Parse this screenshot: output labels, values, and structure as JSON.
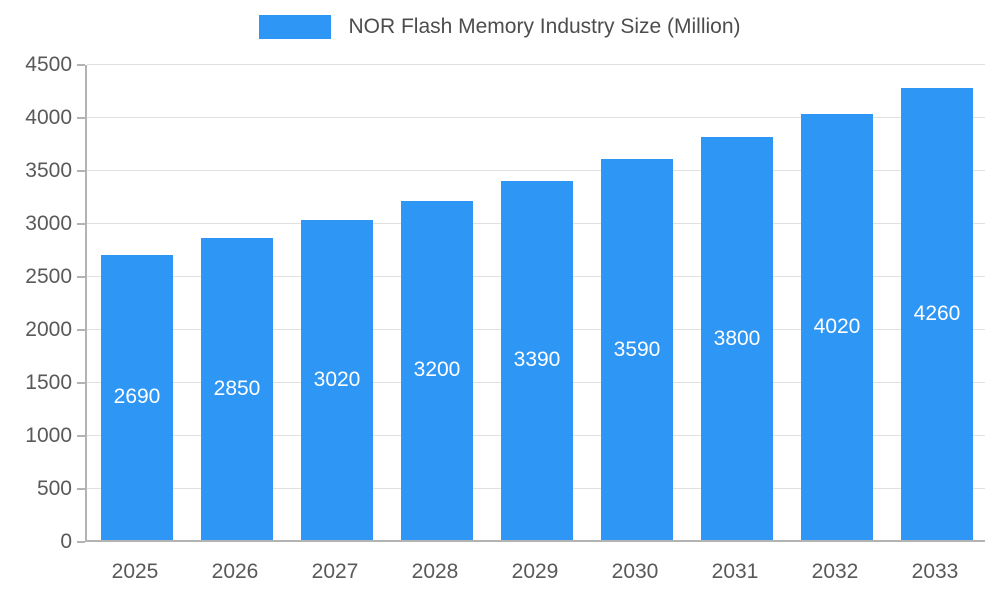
{
  "chart_data": {
    "type": "bar",
    "title": "NOR Flash Memory Industry Size (Million)",
    "categories": [
      "2025",
      "2026",
      "2027",
      "2028",
      "2029",
      "2030",
      "2031",
      "2032",
      "2033"
    ],
    "values": [
      2690,
      2850,
      3020,
      3200,
      3390,
      3590,
      3800,
      4020,
      4260
    ],
    "xlabel": "",
    "ylabel": "",
    "ylim": [
      0,
      4500
    ],
    "yticks": [
      0,
      500,
      1000,
      1500,
      2000,
      2500,
      3000,
      3500,
      4000,
      4500
    ],
    "grid": true,
    "legend_position": "top",
    "bar_color": "#2e96f5",
    "value_label_color": "#ffffff",
    "axis_text_color": "#595959",
    "legend_text_color": "#4d4d4d",
    "grid_color": "#e0e0e0",
    "axis_line_color": "#b3b3b3"
  }
}
